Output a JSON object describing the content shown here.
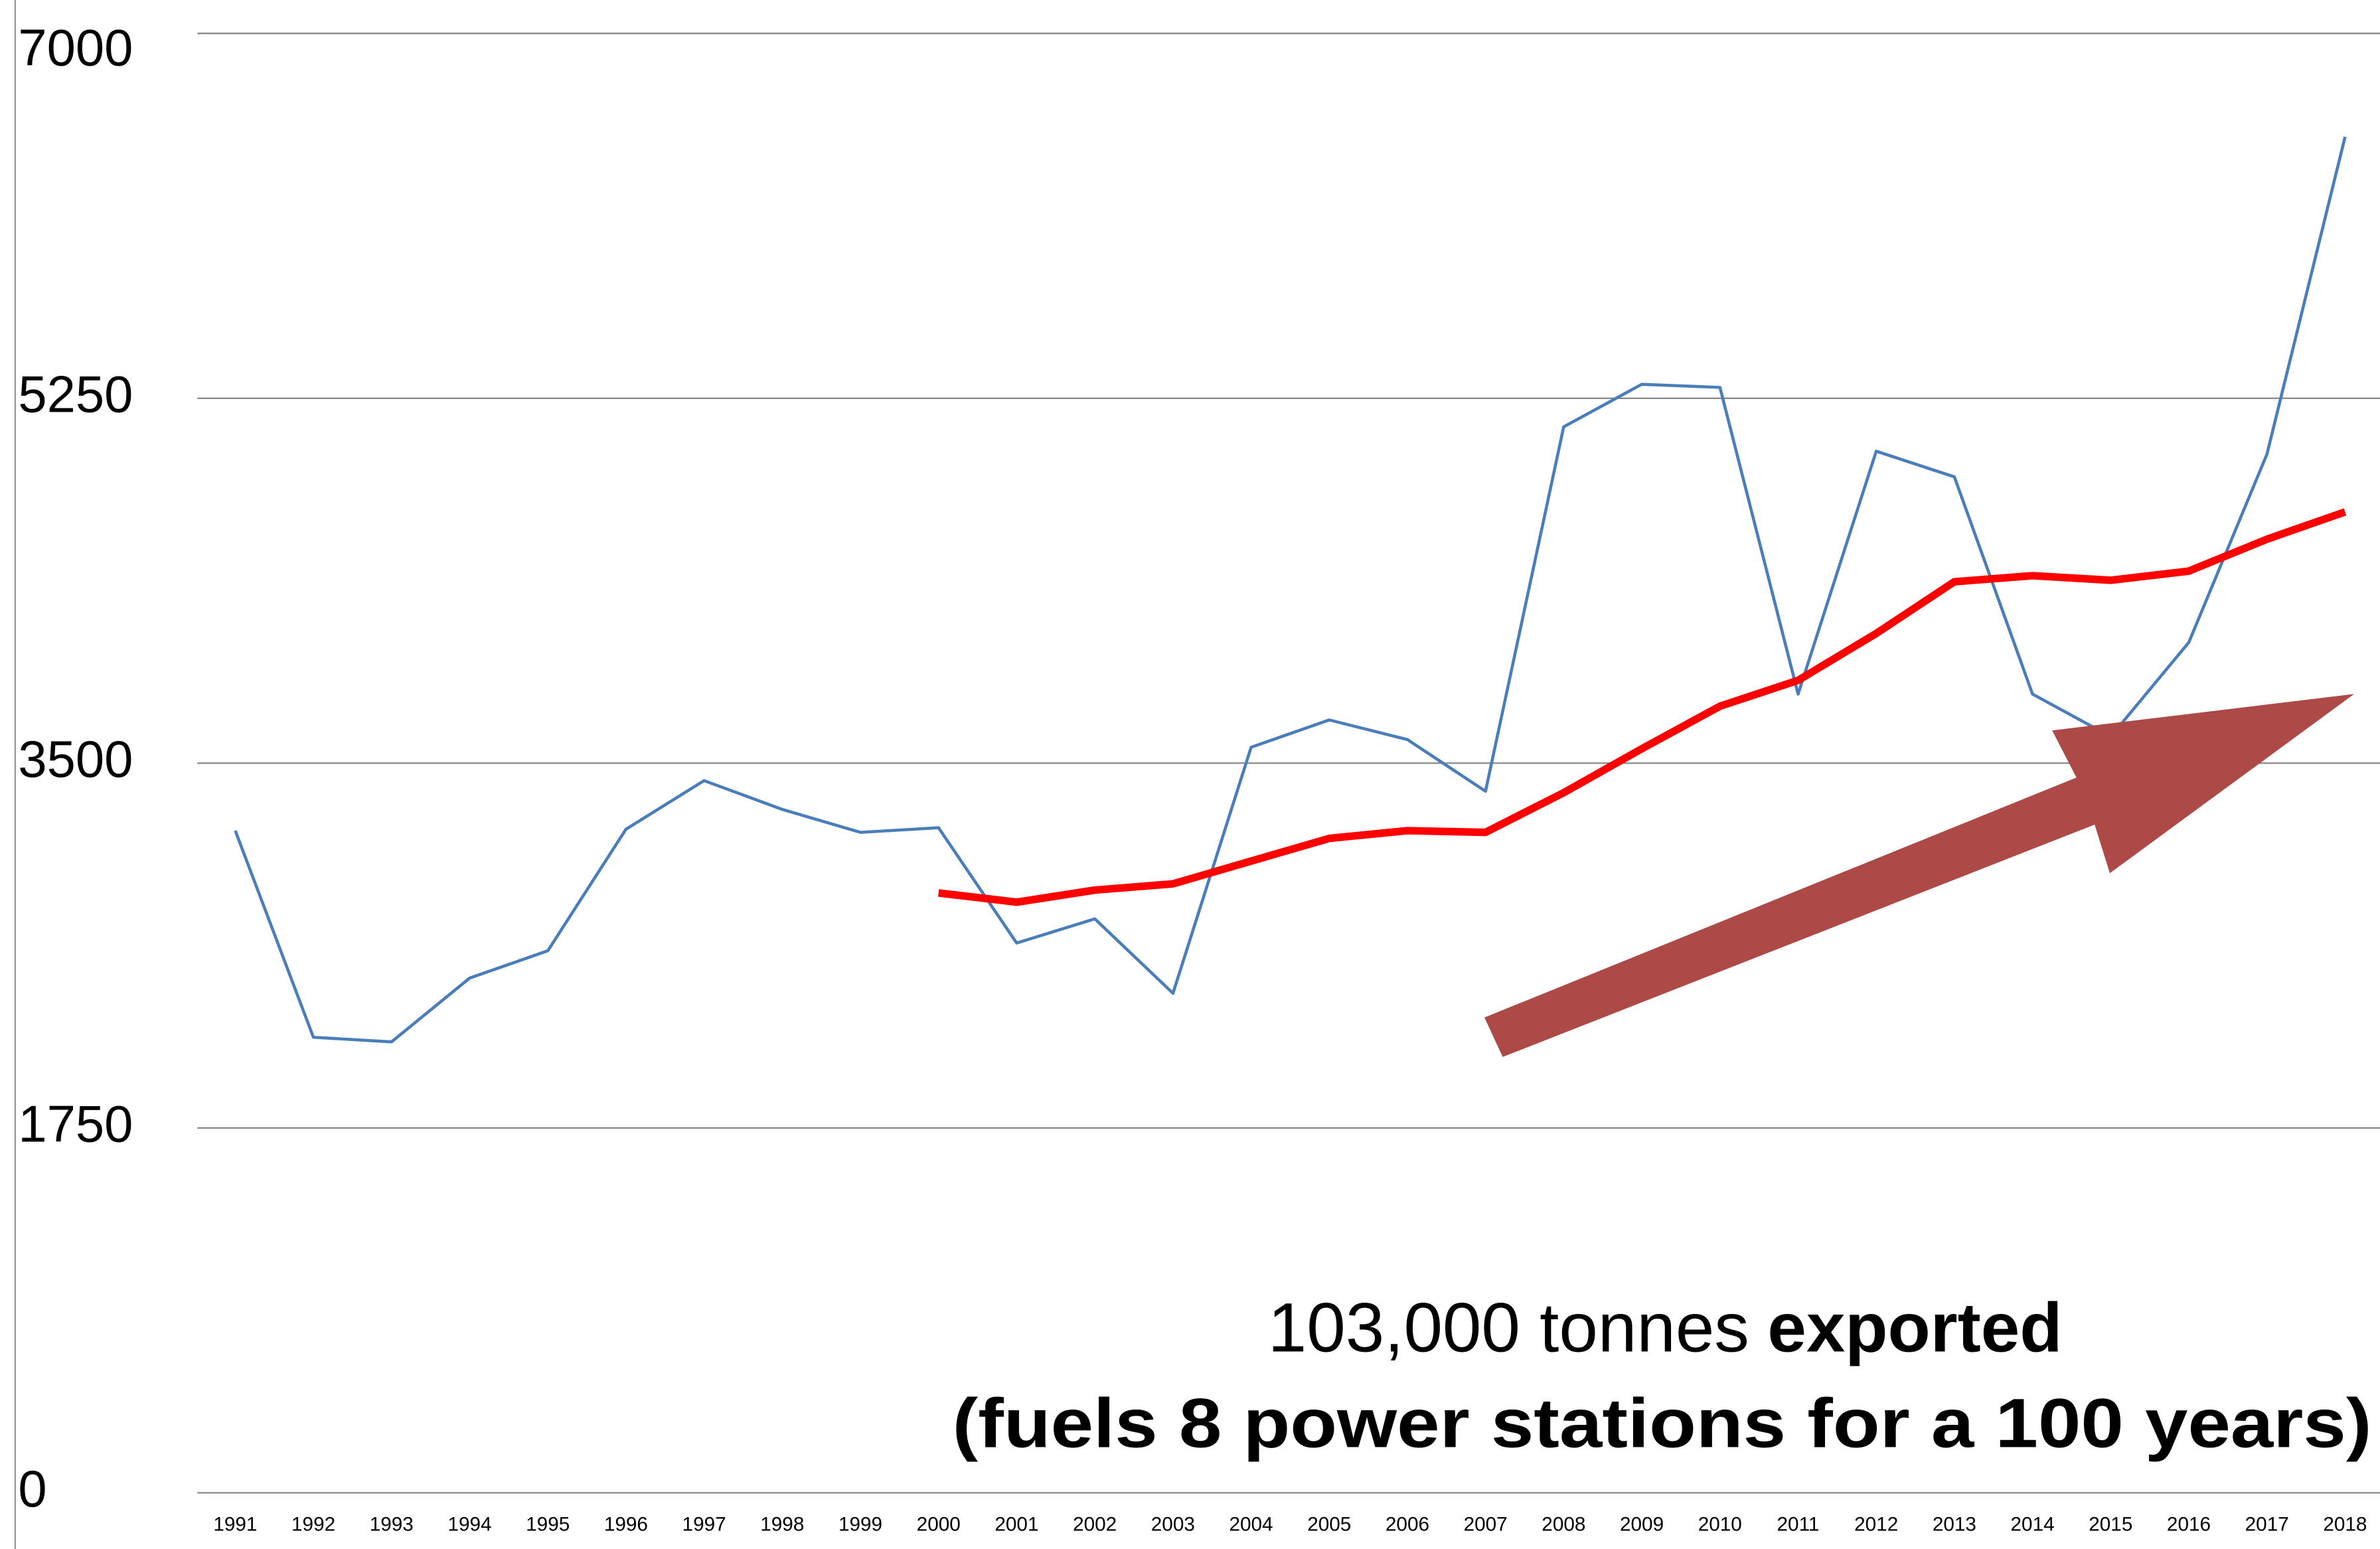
{
  "chart_data": {
    "type": "line",
    "categories": [
      "1991",
      "1992",
      "1993",
      "1994",
      "1995",
      "1996",
      "1997",
      "1998",
      "1999",
      "2000",
      "2001",
      "2002",
      "2003",
      "2004",
      "2005",
      "2006",
      "2007",
      "2008",
      "2009",
      "2010",
      "2011",
      "2012",
      "2013",
      "2014",
      "2015",
      "2016",
      "2017",
      "2018"
    ],
    "series": [
      {
        "color": "#4a7ebb",
        "values": [
          3176,
          2185,
          2163,
          2469,
          2600,
          3183,
          3416,
          3278,
          3168,
          3190,
          2637,
          2753,
          2396,
          3576,
          3707,
          3613,
          3365,
          5113,
          5317,
          5302,
          3831,
          4996,
          4873,
          3831,
          3627,
          4079,
          4982,
          6504
        ]
      },
      {
        "color": "#ff0000",
        "values": [
          null,
          null,
          null,
          null,
          null,
          null,
          null,
          null,
          null,
          2877,
          2833,
          2891,
          2921,
          3030,
          3139,
          3176,
          3168,
          3358,
          3569,
          3773,
          3897,
          4122,
          4370,
          4399,
          4377,
          4421,
          4574,
          4705
        ]
      }
    ],
    "ylim": [
      0,
      7000
    ],
    "yticks": [
      0,
      1750,
      3500,
      5250,
      7000
    ],
    "grid": true,
    "annotation": [
      "103,000 tonnes",
      "exported",
      "(fuels 8 power stations for a 100 years)"
    ]
  }
}
